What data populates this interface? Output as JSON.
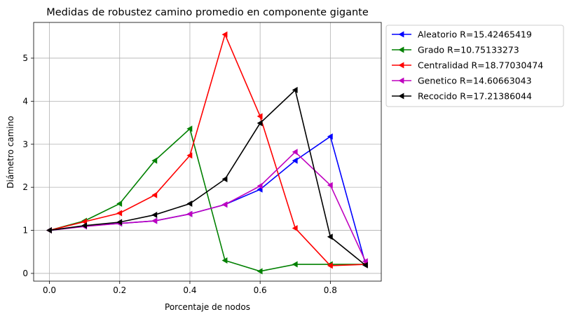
{
  "chart_data": {
    "type": "line",
    "title": "Medidas de robustez camino promedio en componente gigante",
    "xlabel": "Porcentaje de nodos",
    "ylabel": "Diámetro camino",
    "xlim": [
      -0.045,
      0.945
    ],
    "ylim": [
      -0.18,
      5.83
    ],
    "xticks": [
      0.0,
      0.2,
      0.4,
      0.6,
      0.8
    ],
    "xtick_labels": [
      "0.0",
      "0.2",
      "0.4",
      "0.6",
      "0.8"
    ],
    "yticks": [
      0,
      1,
      2,
      3,
      4,
      5
    ],
    "ytick_labels": [
      "0",
      "1",
      "2",
      "3",
      "4",
      "5"
    ],
    "grid": true,
    "legend_position": "outside-right-top",
    "marker": "left-triangle",
    "x": [
      0.0,
      0.1,
      0.2,
      0.3,
      0.4,
      0.5,
      0.6,
      0.7,
      0.8,
      0.9
    ],
    "series": [
      {
        "name": "Aleatorio R=15.42465419",
        "color": "#0000ff",
        "values": [
          1.0,
          1.1,
          1.16,
          1.22,
          1.38,
          1.6,
          1.95,
          2.62,
          3.18,
          0.22
        ]
      },
      {
        "name": "Grado R=10.75133273",
        "color": "#008000",
        "values": [
          1.0,
          1.22,
          1.62,
          2.62,
          3.36,
          0.3,
          0.05,
          0.21,
          0.21,
          0.21
        ]
      },
      {
        "name": "Centralidad R=18.77030474",
        "color": "#ff0000",
        "values": [
          1.0,
          1.2,
          1.4,
          1.82,
          2.74,
          5.55,
          3.65,
          1.05,
          0.18,
          0.21
        ]
      },
      {
        "name": "Genetico R=14.60663043",
        "color": "#bf00bf",
        "values": [
          1.0,
          1.09,
          1.16,
          1.22,
          1.38,
          1.6,
          2.03,
          2.82,
          2.05,
          0.28
        ]
      },
      {
        "name": "Recocido R=17.21386044",
        "color": "#000000",
        "values": [
          1.0,
          1.11,
          1.19,
          1.36,
          1.62,
          2.19,
          3.49,
          4.26,
          0.85,
          0.19
        ]
      }
    ]
  }
}
